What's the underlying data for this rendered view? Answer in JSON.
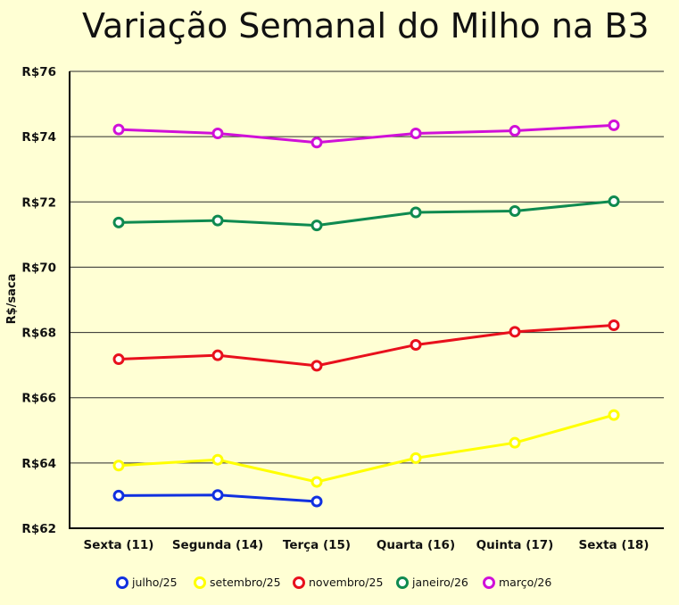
{
  "chart_data": {
    "type": "line",
    "title": "Variação Semanal do Milho na B3",
    "xlabel": "",
    "ylabel": "R$/saca",
    "ylim": [
      62,
      76
    ],
    "yticks": [
      62,
      64,
      66,
      68,
      70,
      72,
      74,
      76
    ],
    "ytick_labels": [
      "R$62",
      "R$64",
      "R$66",
      "R$68",
      "R$70",
      "R$72",
      "R$74",
      "R$76"
    ],
    "grid": true,
    "legend_position": "bottom",
    "categories": [
      "Sexta (11)",
      "Segunda (14)",
      "Terça (15)",
      "Quarta (16)",
      "Quinta (17)",
      "Sexta (18)"
    ],
    "series": [
      {
        "name": "julho/25",
        "color": "#1030e0",
        "values": [
          63.0,
          63.02,
          62.82,
          null,
          null,
          null
        ]
      },
      {
        "name": "setembro/25",
        "color": "#ffff00",
        "values": [
          63.92,
          64.1,
          63.42,
          64.15,
          64.62,
          65.47
        ]
      },
      {
        "name": "novembro/25",
        "color": "#e8101c",
        "values": [
          67.18,
          67.3,
          66.98,
          67.62,
          68.02,
          68.22
        ]
      },
      {
        "name": "janeiro/26",
        "color": "#0f8a50",
        "values": [
          71.37,
          71.43,
          71.28,
          71.68,
          71.72,
          72.02
        ]
      },
      {
        "name": "março/26",
        "color": "#d010d8",
        "values": [
          74.22,
          74.1,
          73.82,
          74.1,
          74.18,
          74.35
        ]
      }
    ]
  }
}
